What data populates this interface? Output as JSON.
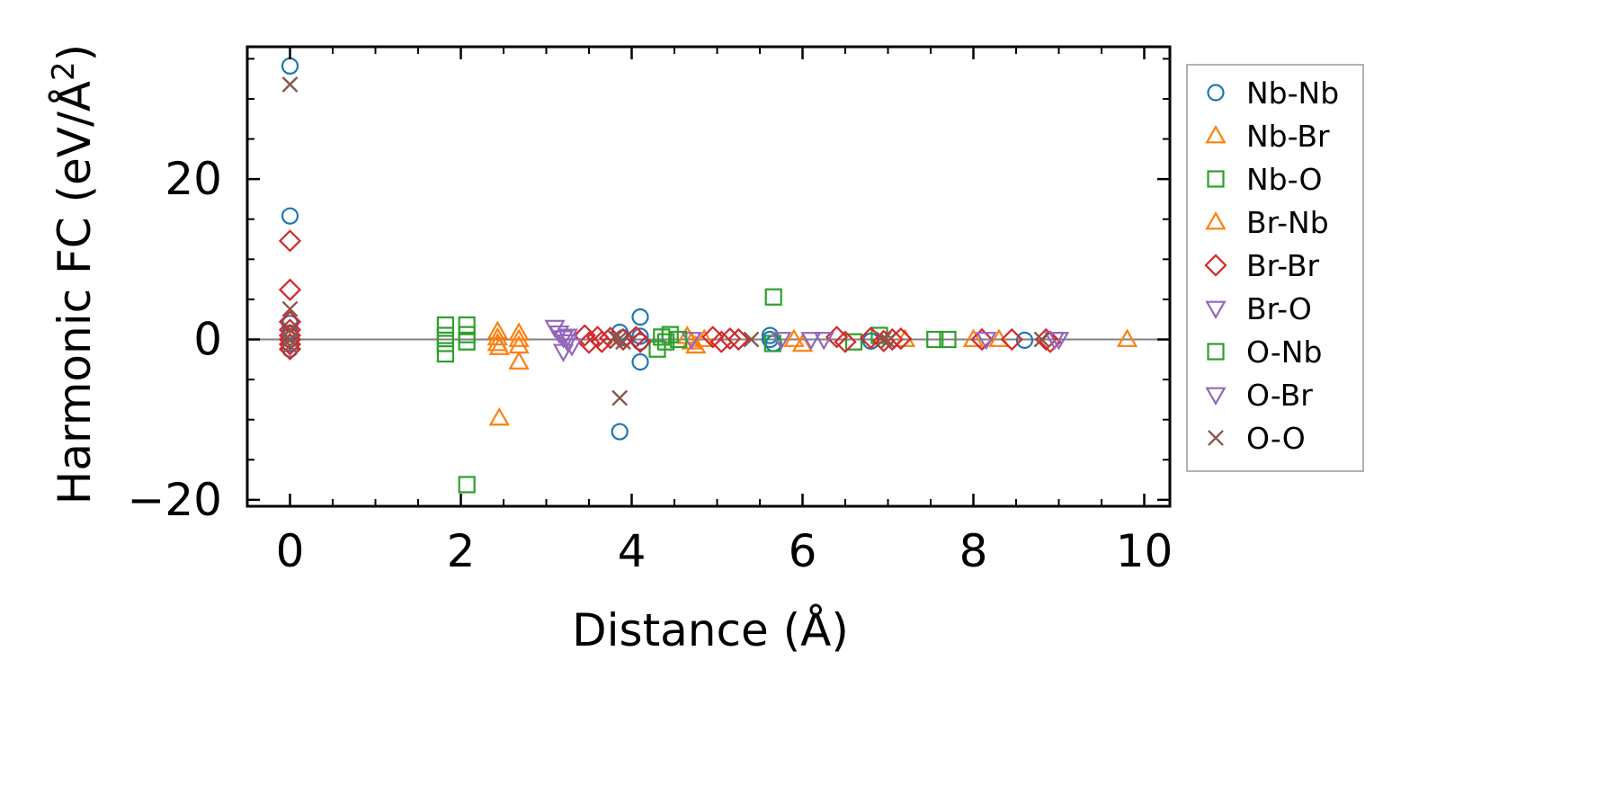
{
  "chart_data": {
    "type": "scatter",
    "xlabel": "Distance (Å)",
    "ylabel_main": "Harmonic FC (eV/Å",
    "ylabel_sup": "2",
    "ylabel_close": ")",
    "xlim": [
      -0.5,
      10.3
    ],
    "ylim": [
      -20.8,
      36.5
    ],
    "x_ticks": [
      0,
      2,
      4,
      6,
      8,
      10
    ],
    "x_tick_labels": [
      "0",
      "2",
      "4",
      "6",
      "8",
      "10"
    ],
    "y_ticks": [
      -20,
      0,
      20
    ],
    "y_tick_labels": [
      "−20",
      "0",
      "20"
    ],
    "x_minor_step": 0.5,
    "y_minor_step": 5,
    "reference_line_y": 0,
    "grid": false,
    "legend_position": "outside-right",
    "series": [
      {
        "name": "Nb-Nb",
        "color": "#1f77b4",
        "marker": "circle",
        "x": [
          0,
          0,
          0,
          0,
          0,
          0,
          0,
          3.86,
          3.86,
          3.9,
          4.1,
          4.1,
          4.1,
          4.1,
          5.62,
          5.62,
          5.66,
          6.8,
          8.6
        ],
        "y": [
          34.1,
          15.4,
          2.0,
          0.8,
          0.0,
          -0.5,
          -1.2,
          -11.5,
          0.9,
          0.2,
          2.8,
          0.4,
          -0.3,
          -2.8,
          0.5,
          0.0,
          -0.5,
          -0.2,
          -0.1
        ]
      },
      {
        "name": "Nb-Br",
        "color": "#ff7f0e",
        "marker": "triangle-up",
        "x": [
          2.43,
          2.43,
          2.43,
          2.45,
          2.45,
          2.68,
          2.68,
          2.68,
          2.68,
          4.65,
          4.7,
          4.75,
          4.85,
          5.9,
          6.0,
          7.2,
          8.0,
          8.3
        ],
        "y": [
          1.0,
          0.2,
          -0.5,
          -1.0,
          -9.8,
          0.8,
          0.0,
          -0.8,
          -2.8,
          0.4,
          -0.3,
          -0.8,
          0.0,
          0.0,
          -0.6,
          0.0,
          0.0,
          0.0
        ]
      },
      {
        "name": "Nb-O",
        "color": "#2ca02c",
        "marker": "square",
        "x": [
          1.82,
          1.82,
          1.82,
          1.82,
          2.07,
          2.07,
          2.07,
          2.07,
          4.3,
          4.35,
          4.4,
          4.45,
          5.65,
          5.66,
          6.6,
          6.9,
          7.55,
          7.7
        ],
        "y": [
          1.8,
          0.5,
          -0.5,
          -1.8,
          -18.1,
          1.8,
          0.6,
          -0.3,
          -1.2,
          0.3,
          -0.3,
          0.6,
          -0.5,
          5.3,
          -0.3,
          0.5,
          0.0,
          0.0
        ]
      },
      {
        "name": "Br-Nb",
        "color": "#ff7f0e",
        "marker": "triangle-up",
        "x": [
          9.8
        ],
        "y": [
          0.0
        ]
      },
      {
        "name": "Br-Br",
        "color": "#d62728",
        "marker": "diamond",
        "x": [
          0,
          0,
          0,
          0,
          0,
          0,
          0,
          0,
          3.45,
          3.5,
          3.6,
          3.65,
          3.75,
          3.9,
          4.05,
          4.1,
          4.95,
          5.05,
          5.15,
          5.25,
          6.4,
          6.5,
          6.8,
          6.95,
          7.05,
          7.15,
          8.1,
          8.45,
          8.85,
          8.9
        ],
        "y": [
          12.3,
          6.2,
          2.2,
          1.2,
          0.5,
          0.0,
          -0.6,
          -1.2,
          0.5,
          -0.4,
          0.3,
          -0.3,
          0.2,
          0.0,
          0.3,
          -0.3,
          0.3,
          -0.3,
          0.1,
          0.0,
          0.3,
          -0.3,
          0.2,
          -0.2,
          0.0,
          0.1,
          0.0,
          0.0,
          0.0,
          -0.3
        ]
      },
      {
        "name": "Br-O",
        "color": "#9467bd",
        "marker": "triangle-down",
        "x": [
          3.1,
          3.15,
          3.2,
          3.25,
          3.3,
          3.2,
          3.25,
          4.7,
          5.75,
          6.1,
          6.25,
          8.15,
          9.0
        ],
        "y": [
          1.5,
          0.8,
          0.2,
          -0.3,
          -0.8,
          -1.5,
          0.4,
          0.0,
          0.0,
          0.0,
          0.0,
          0.0,
          0.0
        ]
      },
      {
        "name": "O-Nb",
        "color": "#2ca02c",
        "marker": "square",
        "x": [
          4.55
        ],
        "y": [
          0.0
        ]
      },
      {
        "name": "O-Br",
        "color": "#9467bd",
        "marker": "triangle-down",
        "x": [
          8.95
        ],
        "y": [
          0.0
        ]
      },
      {
        "name": "O-O",
        "color": "#8c564b",
        "marker": "x",
        "x": [
          0,
          0,
          0,
          0,
          0,
          3.86,
          3.8,
          3.85,
          3.9,
          5.4,
          6.95,
          7.0,
          8.8
        ],
        "y": [
          31.8,
          3.8,
          1.2,
          0.0,
          -0.8,
          -7.3,
          0.3,
          0.0,
          -0.3,
          0.0,
          0.0,
          -0.2,
          0.0
        ]
      }
    ]
  }
}
